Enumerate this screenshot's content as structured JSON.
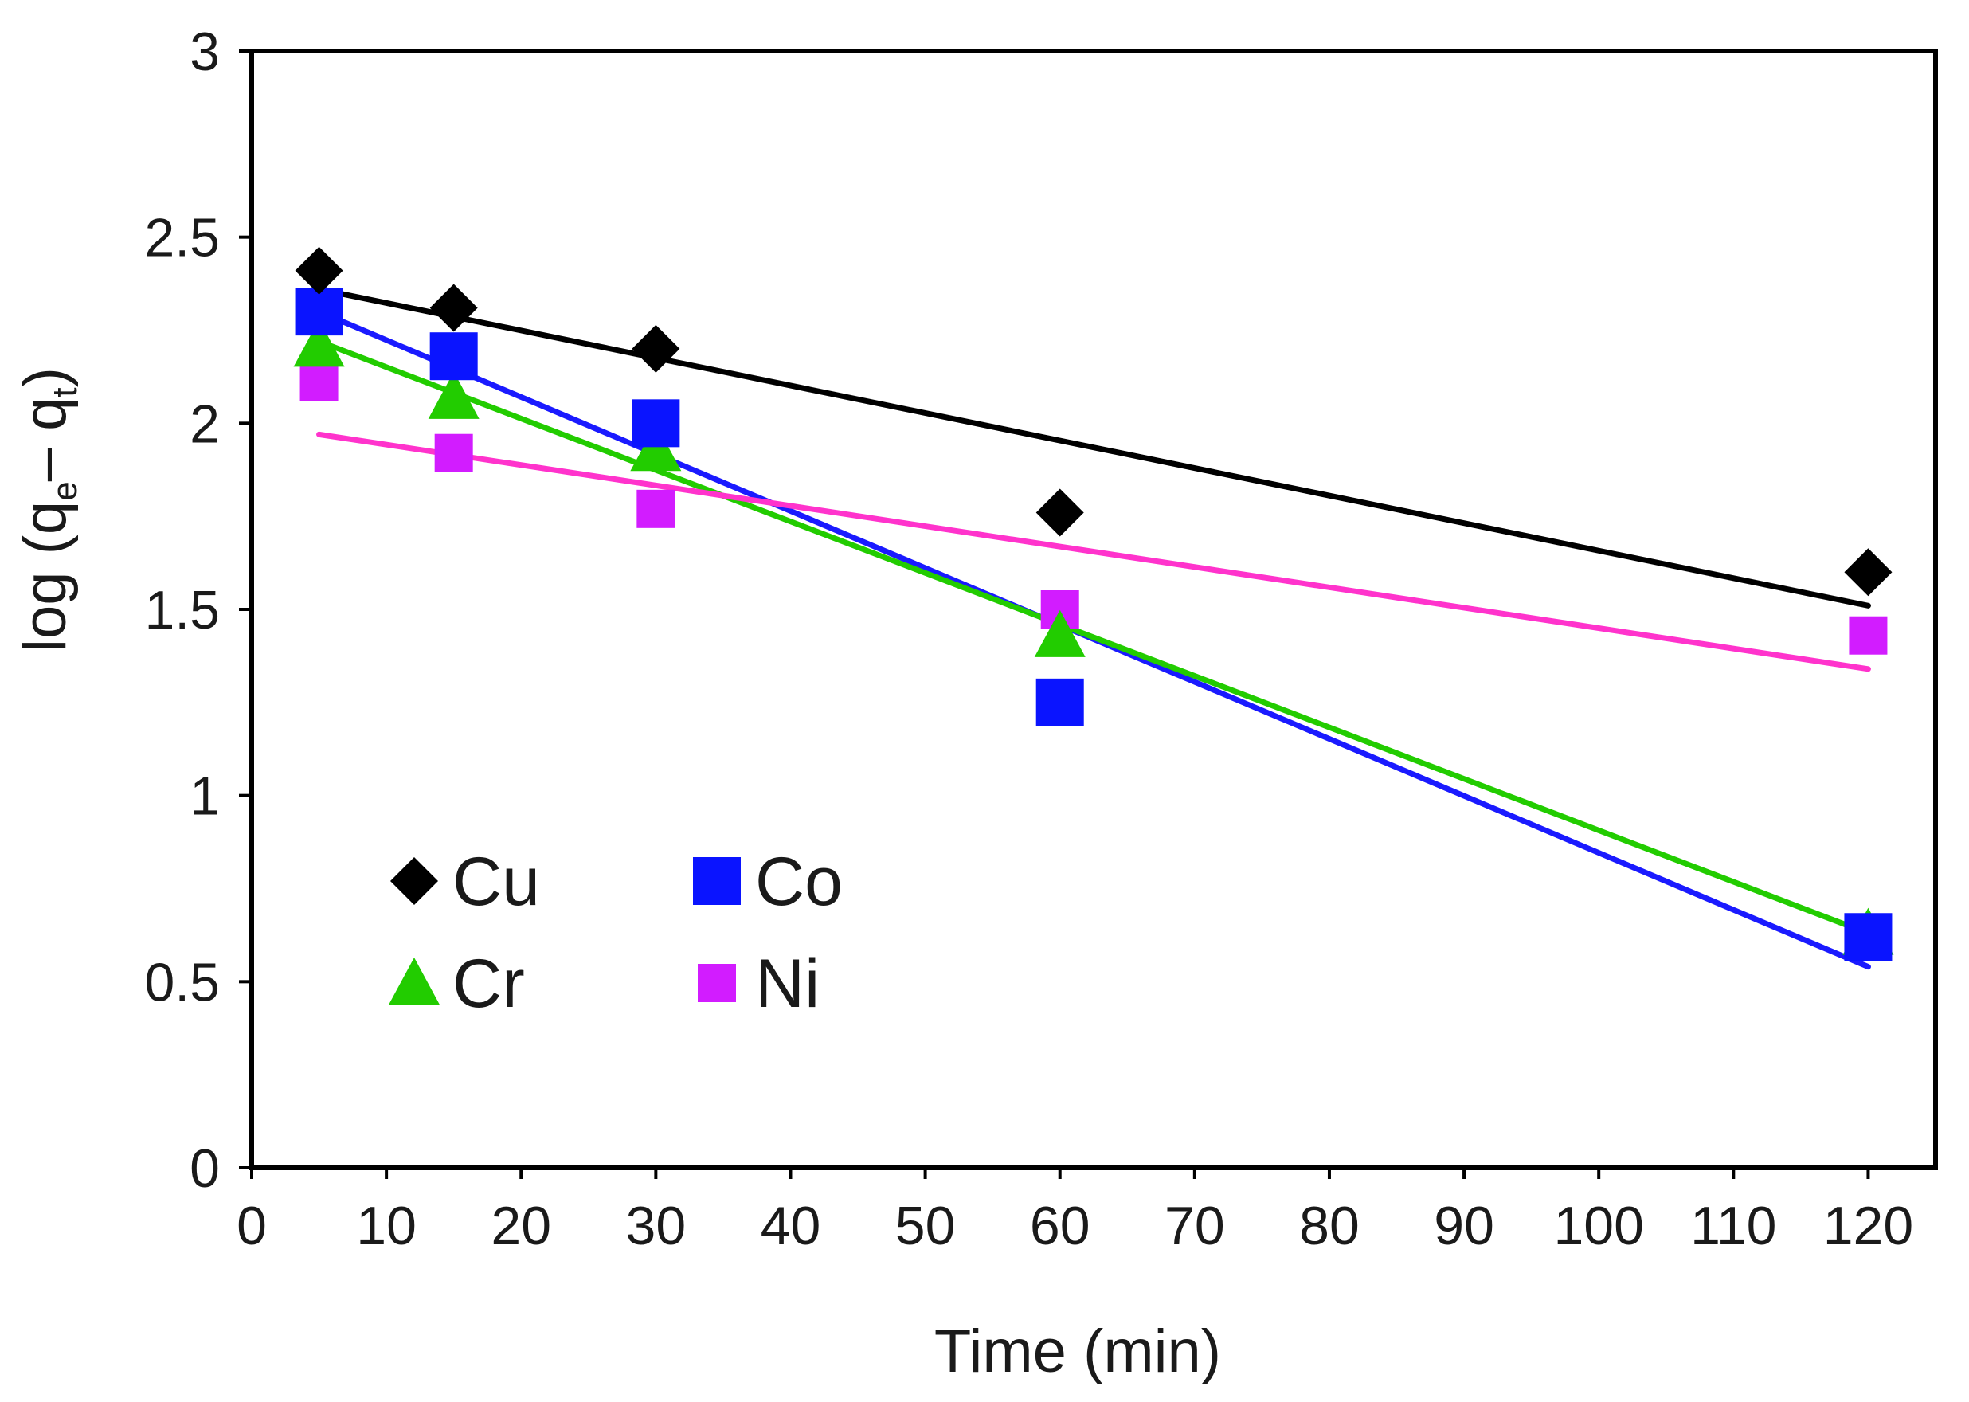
{
  "chart_data": {
    "type": "scatter",
    "xlabel": "Time (min)",
    "ylabel": {
      "prefix": "log (q",
      "sub1": "e",
      "middle": "– q",
      "sub2": "t",
      "suffix": ")"
    },
    "xlim": [
      0,
      125
    ],
    "ylim": [
      0,
      3
    ],
    "xticks": [
      "0",
      "10",
      "20",
      "30",
      "40",
      "50",
      "60",
      "70",
      "80",
      "90",
      "100",
      "110",
      "120"
    ],
    "yticks": [
      "0",
      "0.5",
      "1",
      "1.5",
      "2",
      "2.5",
      "3"
    ],
    "grid": false,
    "legend_position": "bottom-left",
    "series": [
      {
        "name": "Cu",
        "marker": "diamond",
        "color": "#000000",
        "line_color": "#000000",
        "x": [
          5,
          15,
          30,
          60,
          120
        ],
        "y": [
          2.41,
          2.31,
          2.2,
          1.76,
          1.6
        ],
        "fit": {
          "x": [
            5,
            120
          ],
          "y": [
            2.36,
            1.51
          ]
        }
      },
      {
        "name": "Co",
        "marker": "square",
        "color": "#0a14ff",
        "line_color": "#1a1aff",
        "x": [
          5,
          15,
          30,
          60,
          120
        ],
        "y": [
          2.3,
          2.18,
          2.0,
          1.25,
          0.62
        ],
        "fit": {
          "x": [
            5,
            120
          ],
          "y": [
            2.3,
            0.54
          ]
        }
      },
      {
        "name": "Cr",
        "marker": "triangle",
        "color": "#22cc00",
        "line_color": "#22cc00",
        "x": [
          5,
          15,
          30,
          60,
          120
        ],
        "y": [
          2.21,
          2.07,
          1.93,
          1.43,
          0.63
        ],
        "fit": {
          "x": [
            5,
            120
          ],
          "y": [
            2.22,
            0.63
          ]
        }
      },
      {
        "name": "Ni",
        "marker": "square-small",
        "color": "#d21cff",
        "line_color": "#ff33cc",
        "x": [
          5,
          15,
          30,
          60,
          120
        ],
        "y": [
          2.11,
          1.92,
          1.77,
          1.5,
          1.43
        ],
        "fit": {
          "x": [
            5,
            120
          ],
          "y": [
            1.97,
            1.34
          ]
        }
      }
    ]
  }
}
